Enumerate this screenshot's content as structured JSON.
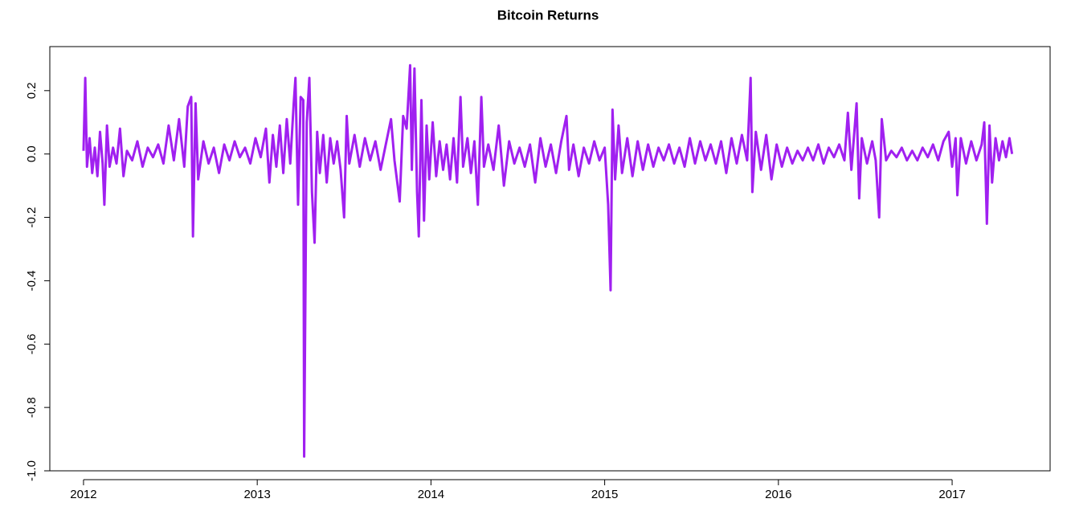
{
  "chart_data": {
    "type": "line",
    "title": "Bitcoin Returns",
    "xlim": [
      2011.806,
      2017.564
    ],
    "xticks": [
      2012,
      2013,
      2014,
      2015,
      2016,
      2017
    ],
    "ylim": [
      -1.0,
      0.339
    ],
    "yticks": [
      {
        "value": -1.0,
        "label": "-1.0"
      },
      -0.8,
      -0.6,
      -0.4,
      -0.2,
      {
        "value": 0.0,
        "label": "0.0"
      },
      0.2
    ],
    "series": [
      {
        "color": "#a020f0",
        "x": [
          2012.0,
          2012.01,
          2012.02,
          2012.035,
          2012.05,
          2012.065,
          2012.08,
          2012.095,
          2012.11,
          2012.12,
          2012.135,
          2012.15,
          2012.17,
          2012.19,
          2012.21,
          2012.23,
          2012.25,
          2012.28,
          2012.31,
          2012.34,
          2012.37,
          2012.4,
          2012.43,
          2012.46,
          2012.49,
          2012.52,
          2012.55,
          2012.58,
          2012.6,
          2012.62,
          2012.63,
          2012.645,
          2012.66,
          2012.69,
          2012.72,
          2012.75,
          2012.78,
          2012.81,
          2012.84,
          2012.87,
          2012.9,
          2012.93,
          2012.96,
          2012.99,
          2013.02,
          2013.05,
          2013.07,
          2013.09,
          2013.11,
          2013.13,
          2013.15,
          2013.17,
          2013.19,
          2013.21,
          2013.22,
          2013.235,
          2013.25,
          2013.265,
          2013.27,
          2013.285,
          2013.3,
          2013.315,
          2013.33,
          2013.345,
          2013.36,
          2013.38,
          2013.4,
          2013.42,
          2013.44,
          2013.46,
          2013.48,
          2013.5,
          2013.515,
          2013.53,
          2013.56,
          2013.59,
          2013.62,
          2013.65,
          2013.68,
          2013.71,
          2013.74,
          2013.77,
          2013.79,
          2013.82,
          2013.84,
          2013.86,
          2013.88,
          2013.89,
          2013.905,
          2013.92,
          2013.93,
          2013.945,
          2013.96,
          2013.975,
          2013.99,
          2014.01,
          2014.03,
          2014.05,
          2014.07,
          2014.09,
          2014.11,
          2014.13,
          2014.15,
          2014.17,
          2014.185,
          2014.21,
          2014.23,
          2014.25,
          2014.27,
          2014.29,
          2014.305,
          2014.33,
          2014.36,
          2014.39,
          2014.42,
          2014.45,
          2014.48,
          2014.51,
          2014.54,
          2014.57,
          2014.6,
          2014.63,
          2014.66,
          2014.69,
          2014.72,
          2014.75,
          2014.78,
          2014.795,
          2014.82,
          2014.85,
          2014.88,
          2014.91,
          2014.94,
          2014.97,
          2015.0,
          2015.02,
          2015.034,
          2015.045,
          2015.06,
          2015.08,
          2015.1,
          2015.13,
          2015.16,
          2015.19,
          2015.22,
          2015.25,
          2015.28,
          2015.31,
          2015.34,
          2015.37,
          2015.4,
          2015.43,
          2015.46,
          2015.49,
          2015.52,
          2015.55,
          2015.58,
          2015.61,
          2015.64,
          2015.67,
          2015.7,
          2015.73,
          2015.76,
          2015.79,
          2015.82,
          2015.84,
          2015.85,
          2015.87,
          2015.9,
          2015.93,
          2015.96,
          2015.99,
          2016.02,
          2016.05,
          2016.08,
          2016.11,
          2016.14,
          2016.17,
          2016.2,
          2016.23,
          2016.26,
          2016.29,
          2016.32,
          2016.35,
          2016.38,
          2016.4,
          2016.42,
          2016.45,
          2016.465,
          2016.48,
          2016.51,
          2016.54,
          2016.56,
          2016.58,
          2016.595,
          2016.62,
          2016.65,
          2016.68,
          2016.71,
          2016.74,
          2016.77,
          2016.8,
          2016.83,
          2016.86,
          2016.89,
          2016.92,
          2016.95,
          2016.98,
          2017.0,
          2017.02,
          2017.03,
          2017.05,
          2017.08,
          2017.11,
          2017.14,
          2017.17,
          2017.185,
          2017.2,
          2017.215,
          2017.23,
          2017.25,
          2017.27,
          2017.29,
          2017.31,
          2017.33,
          2017.345
        ],
        "values": [
          0.01,
          0.24,
          -0.04,
          0.05,
          -0.06,
          0.02,
          -0.07,
          0.07,
          -0.03,
          -0.16,
          0.09,
          -0.04,
          0.02,
          -0.03,
          0.08,
          -0.07,
          0.01,
          -0.02,
          0.04,
          -0.04,
          0.02,
          -0.01,
          0.03,
          -0.03,
          0.09,
          -0.02,
          0.11,
          -0.04,
          0.15,
          0.18,
          -0.26,
          0.16,
          -0.08,
          0.04,
          -0.03,
          0.02,
          -0.06,
          0.03,
          -0.02,
          0.04,
          -0.01,
          0.02,
          -0.03,
          0.05,
          -0.01,
          0.08,
          -0.09,
          0.06,
          -0.04,
          0.09,
          -0.06,
          0.11,
          -0.03,
          0.16,
          0.24,
          -0.16,
          0.18,
          0.17,
          -0.955,
          0.1,
          0.24,
          -0.12,
          -0.28,
          0.07,
          -0.06,
          0.06,
          -0.09,
          0.05,
          -0.03,
          0.04,
          -0.05,
          -0.2,
          0.12,
          -0.03,
          0.06,
          -0.04,
          0.05,
          -0.02,
          0.04,
          -0.05,
          0.03,
          0.11,
          -0.02,
          -0.15,
          0.12,
          0.08,
          0.28,
          -0.05,
          0.27,
          -0.12,
          -0.26,
          0.17,
          -0.21,
          0.09,
          -0.08,
          0.1,
          -0.07,
          0.04,
          -0.05,
          0.03,
          -0.08,
          0.05,
          -0.09,
          0.18,
          -0.04,
          0.05,
          -0.06,
          0.04,
          -0.16,
          0.18,
          -0.04,
          0.03,
          -0.05,
          0.09,
          -0.1,
          0.04,
          -0.03,
          0.02,
          -0.04,
          0.03,
          -0.09,
          0.05,
          -0.04,
          0.03,
          -0.06,
          0.04,
          0.12,
          -0.05,
          0.03,
          -0.07,
          0.02,
          -0.03,
          0.04,
          -0.02,
          0.02,
          -0.16,
          -0.43,
          0.14,
          -0.08,
          0.09,
          -0.06,
          0.05,
          -0.07,
          0.04,
          -0.05,
          0.03,
          -0.04,
          0.02,
          -0.02,
          0.03,
          -0.03,
          0.02,
          -0.04,
          0.05,
          -0.03,
          0.04,
          -0.02,
          0.03,
          -0.03,
          0.04,
          -0.06,
          0.05,
          -0.03,
          0.06,
          -0.02,
          0.24,
          -0.12,
          0.07,
          -0.05,
          0.06,
          -0.08,
          0.03,
          -0.04,
          0.02,
          -0.03,
          0.01,
          -0.02,
          0.02,
          -0.02,
          0.03,
          -0.03,
          0.02,
          -0.01,
          0.03,
          -0.02,
          0.13,
          -0.05,
          0.16,
          -0.14,
          0.05,
          -0.03,
          0.04,
          -0.02,
          -0.2,
          0.11,
          -0.02,
          0.01,
          -0.01,
          0.02,
          -0.02,
          0.01,
          -0.02,
          0.02,
          -0.01,
          0.03,
          -0.02,
          0.04,
          0.07,
          -0.04,
          0.05,
          -0.13,
          0.05,
          -0.03,
          0.04,
          -0.02,
          0.03,
          0.1,
          -0.22,
          0.09,
          -0.09,
          0.05,
          -0.02,
          0.04,
          -0.01,
          0.05,
          0.0
        ]
      }
    ]
  }
}
